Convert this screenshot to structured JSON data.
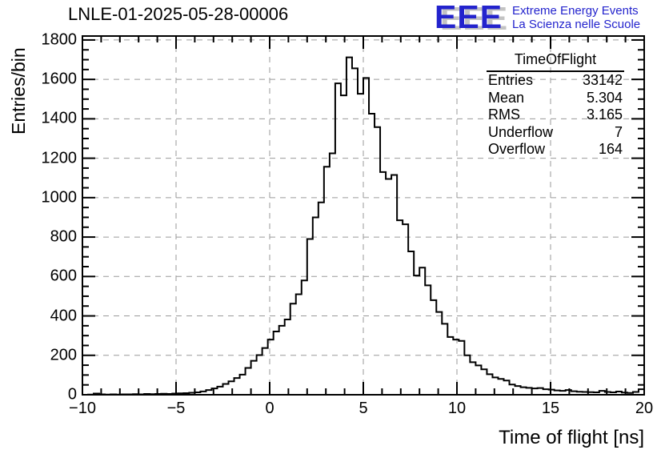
{
  "header": {
    "plot_title": "LNLE-01-2025-05-28-00006",
    "logo": {
      "acronym": "EEE",
      "line1": "Extreme Energy Events",
      "line2": "La Scienza nelle Scuole"
    }
  },
  "stats_box": {
    "title": "TimeOfFlight",
    "rows": [
      {
        "label": "Entries",
        "value": "33142"
      },
      {
        "label": "Mean",
        "value": "5.304"
      },
      {
        "label": "RMS",
        "value": "3.165"
      },
      {
        "label": "Underflow",
        "value": "7"
      },
      {
        "label": "Overflow",
        "value": "164"
      }
    ]
  },
  "chart_data": {
    "type": "bar",
    "subtype": "step-histogram",
    "title": "LNLE-01-2025-05-28-00006",
    "xlabel": "Time of flight [ns]",
    "ylabel": "Entries/bin",
    "xlim": [
      -10,
      20
    ],
    "ylim": [
      0,
      1820
    ],
    "grid": "dashed-on-major-ticks",
    "legend_position": "none",
    "bin_start": -10,
    "bin_width": 0.3,
    "values": [
      0,
      1,
      6,
      2,
      1,
      2,
      1,
      2,
      2,
      3,
      2,
      4,
      3,
      4,
      5,
      4,
      6,
      7,
      8,
      10,
      12,
      17,
      24,
      32,
      41,
      55,
      68,
      85,
      102,
      136,
      172,
      201,
      237,
      280,
      321,
      350,
      382,
      462,
      510,
      580,
      790,
      900,
      976,
      1157,
      1225,
      1580,
      1519,
      1712,
      1656,
      1527,
      1607,
      1426,
      1358,
      1130,
      1095,
      1115,
      885,
      865,
      727,
      605,
      645,
      555,
      480,
      420,
      360,
      293,
      280,
      273,
      200,
      165,
      149,
      129,
      104,
      88,
      80,
      72,
      52,
      44,
      38,
      35,
      32,
      34,
      28,
      26,
      22,
      20,
      24,
      18,
      15,
      14,
      13,
      12,
      20,
      14,
      12,
      16,
      11,
      9,
      14,
      28
    ],
    "x_ticks": {
      "values": [
        -10,
        -5,
        0,
        5,
        10,
        15,
        20
      ],
      "labels": [
        "−10",
        "−5",
        "0",
        "5",
        "10",
        "15",
        "20"
      ],
      "minor_step": 1
    },
    "y_ticks": {
      "values": [
        0,
        200,
        400,
        600,
        800,
        1000,
        1200,
        1400,
        1600,
        1800
      ],
      "labels": [
        "0",
        "200",
        "400",
        "600",
        "800",
        "1000",
        "1200",
        "1400",
        "1600",
        "1800"
      ],
      "minor_step": 50
    },
    "colors": {
      "histogram_line": "#000000",
      "frame": "#000000",
      "grid": "#9a9a9a",
      "logo_blue": "#2323cd",
      "logo_shadow": "#c3c3c3"
    }
  }
}
